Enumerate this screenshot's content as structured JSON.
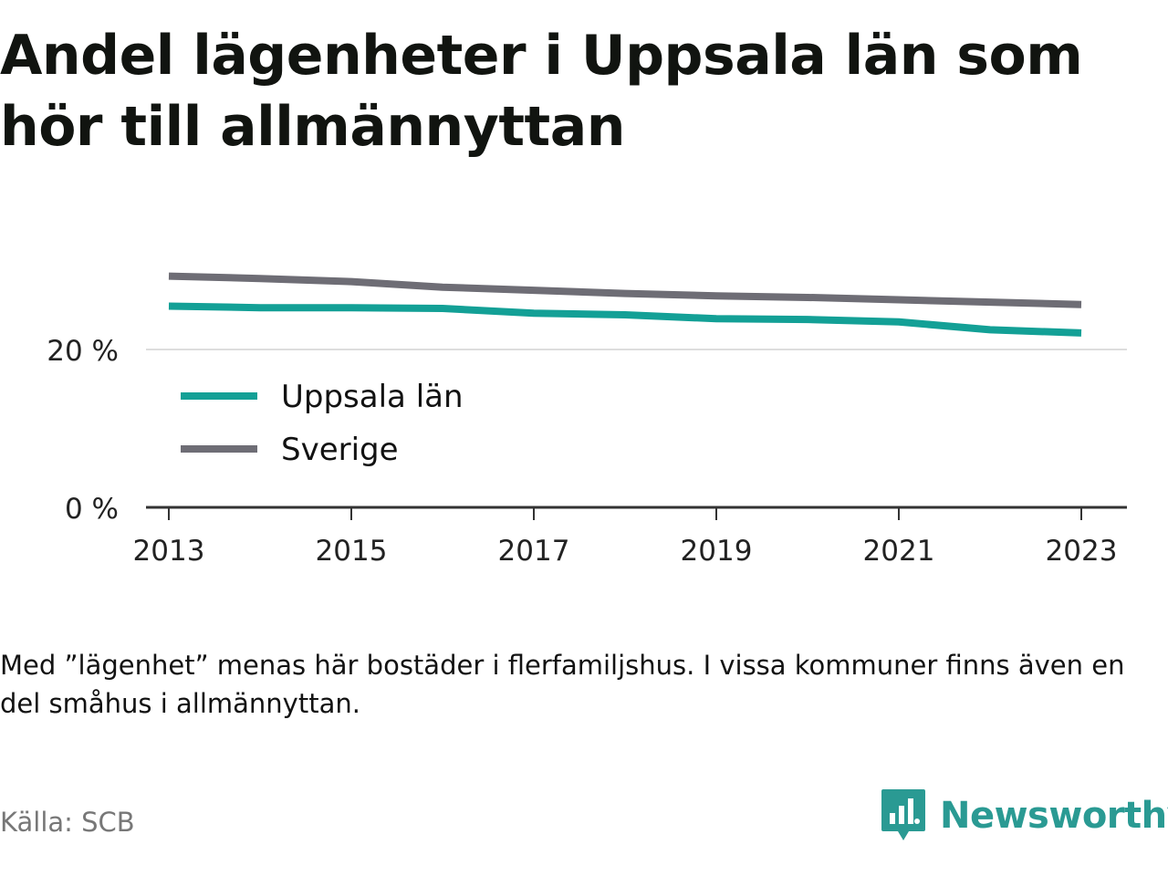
{
  "title": "Andel lägenheter i Uppsala län som hör till allmännyttan",
  "note": "Med ”lägenhet” menas här bostäder i flerfamiljshus. I vissa kommuner finns även en del småhus i allmännyttan.",
  "source": "Källa: SCB",
  "brand": {
    "name": "Newsworthy",
    "icon": "newsworthy-logo-icon"
  },
  "colors": {
    "uppsala": "#13a096",
    "sverige": "#6e6d75",
    "grid": "#dddddd",
    "axis": "#333333"
  },
  "chart_data": {
    "type": "line",
    "x": [
      2013,
      2014,
      2015,
      2016,
      2017,
      2018,
      2019,
      2020,
      2021,
      2022,
      2023
    ],
    "series": [
      {
        "name": "Uppsala län",
        "values": [
          25.5,
          25.3,
          25.3,
          25.2,
          24.6,
          24.4,
          23.9,
          23.8,
          23.5,
          22.5,
          22.1
        ]
      },
      {
        "name": "Sverige",
        "values": [
          29.3,
          29.0,
          28.6,
          27.9,
          27.5,
          27.1,
          26.8,
          26.6,
          26.3,
          26.0,
          25.7
        ]
      }
    ],
    "xticks": [
      "2013",
      "2015",
      "2017",
      "2019",
      "2021",
      "2023"
    ],
    "yticks": [
      "0 %",
      "20 %"
    ],
    "ytick_values": [
      0,
      20
    ],
    "ylim": [
      0,
      29.6
    ],
    "xlim": [
      2012.75,
      2023.5
    ],
    "legend_position": "top-left",
    "grid": true
  }
}
